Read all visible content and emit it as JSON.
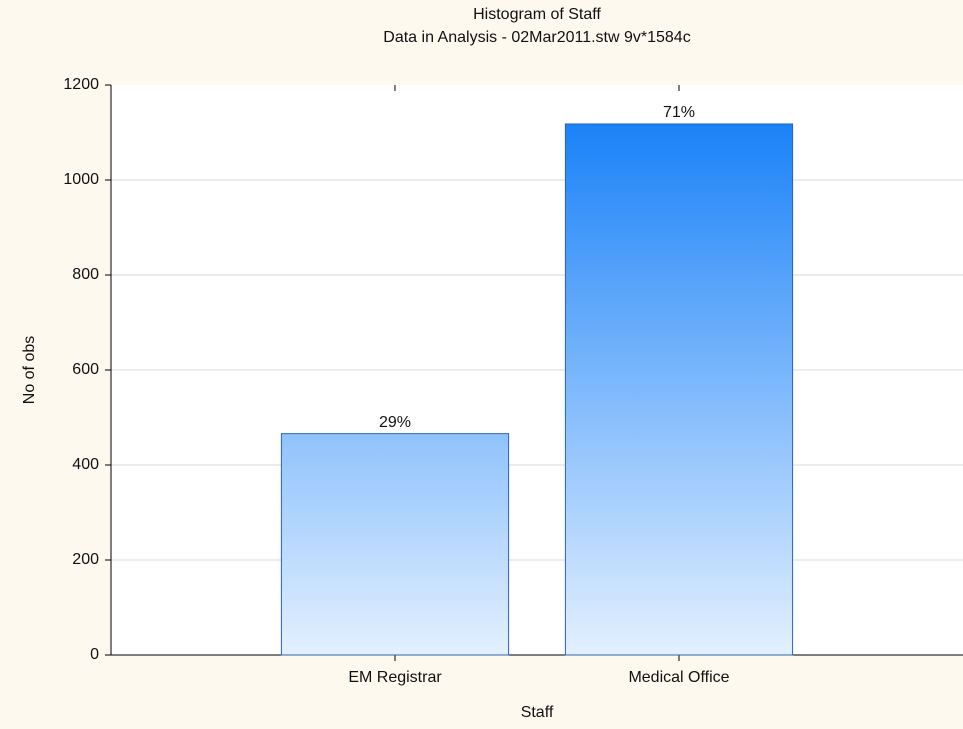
{
  "chart_data": {
    "type": "bar",
    "title": "Histogram of Staff",
    "subtitle": "Data in Analysis - 02Mar2011.stw 9v*1584c",
    "x_label": "Staff",
    "y_label": "No of obs",
    "categories": [
      "EM Registrar",
      "Medical Office"
    ],
    "values": [
      466,
      1118
    ],
    "value_labels": [
      "29%",
      "71%"
    ],
    "color": "#1a82f8",
    "ylim": [
      0,
      1200
    ],
    "yticks": [
      0,
      200,
      400,
      600,
      800,
      1000,
      1200
    ],
    "grid": true
  }
}
